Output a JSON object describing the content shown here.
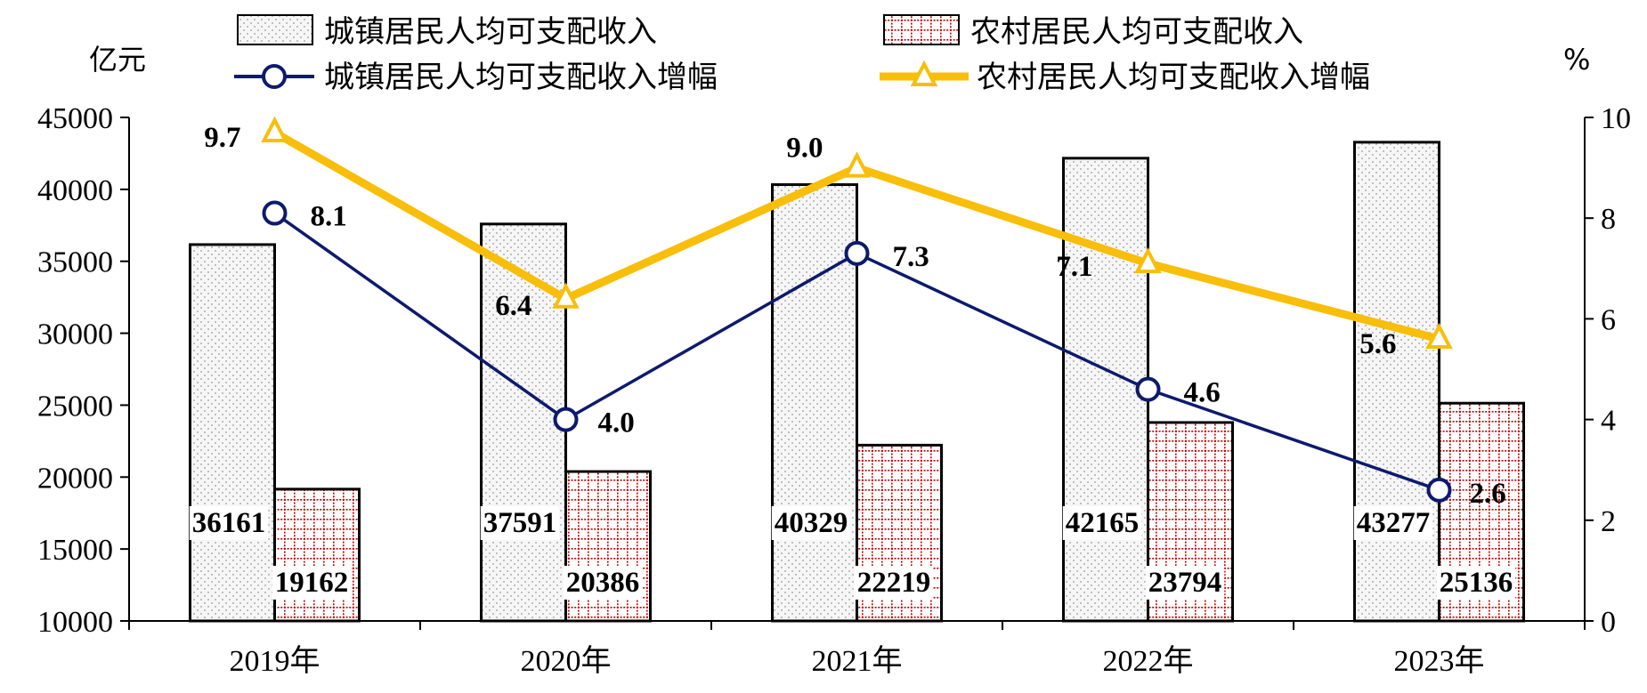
{
  "chart_data": {
    "type": "bar",
    "categories": [
      "2019年",
      "2020年",
      "2021年",
      "2022年",
      "2023年"
    ],
    "left_axis_unit": "亿元",
    "right_axis_unit": "%",
    "ylim_left": [
      10000,
      45000
    ],
    "yticks_left": [
      "45000",
      "40000",
      "35000",
      "30000",
      "25000",
      "20000",
      "15000",
      "10000"
    ],
    "ylim_right": [
      0,
      10
    ],
    "yticks_right": [
      "10",
      "8",
      "6",
      "4",
      "2",
      "0"
    ],
    "legend_position": "top",
    "series": [
      {
        "name": "城镇居民人均可支配收入",
        "kind": "bar",
        "axis": "left",
        "pattern": "dots",
        "color": "#c8c8c8",
        "values": [
          36161,
          37591,
          40329,
          42165,
          43277
        ]
      },
      {
        "name": "农村居民人均可支配收入",
        "kind": "bar",
        "axis": "left",
        "pattern": "grid",
        "color": "#c00000",
        "values": [
          19162,
          20386,
          22219,
          23794,
          25136
        ]
      },
      {
        "name": "城镇居民人均可支配收入增幅",
        "kind": "line",
        "axis": "right",
        "marker": "circle",
        "color": "#0d1a6e",
        "values": [
          8.1,
          4.0,
          7.3,
          4.6,
          2.6
        ],
        "labels": [
          "8.1",
          "4.0",
          "7.3",
          "4.6",
          "2.6"
        ]
      },
      {
        "name": "农村居民人均可支配收入增幅",
        "kind": "line",
        "axis": "right",
        "marker": "triangle",
        "color": "#f8be0a",
        "values": [
          9.7,
          6.4,
          9.0,
          7.1,
          5.6
        ],
        "labels": [
          "9.7",
          "6.4",
          "9.0",
          "7.1",
          "5.6"
        ]
      }
    ]
  }
}
